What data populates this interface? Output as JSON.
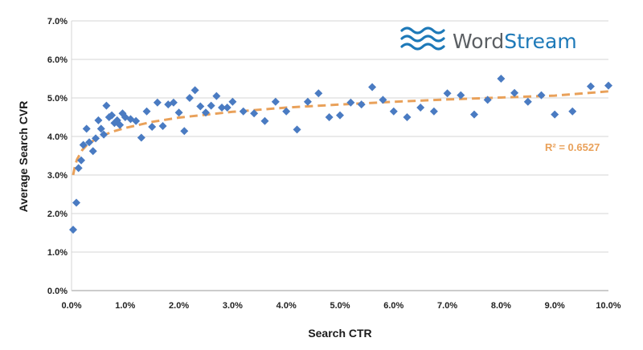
{
  "brand": {
    "name_part1": "Word",
    "name_part2": "Stream",
    "color_gray": "#5b5f63",
    "color_blue": "#1d79b8"
  },
  "chart_data": {
    "type": "scatter",
    "xlabel": "Search CTR",
    "ylabel": "Average Search CVR",
    "xlim": [
      0,
      10
    ],
    "ylim": [
      0,
      7
    ],
    "x_ticks": [
      "0.0%",
      "1.0%",
      "2.0%",
      "3.0%",
      "4.0%",
      "5.0%",
      "6.0%",
      "7.0%",
      "8.0%",
      "9.0%",
      "10.0%"
    ],
    "y_ticks": [
      "0.0%",
      "1.0%",
      "2.0%",
      "3.0%",
      "4.0%",
      "5.0%",
      "6.0%",
      "7.0%"
    ],
    "grid": "horizontal",
    "marker_color": "#4a7bc2",
    "trendline": {
      "type": "logarithmic",
      "label": "R² = 0.6527",
      "color": "#e9a15a",
      "points": [
        [
          0.03,
          3.0
        ],
        [
          0.06,
          3.2
        ],
        [
          0.1,
          3.4
        ],
        [
          0.2,
          3.65
        ],
        [
          0.3,
          3.8
        ],
        [
          0.5,
          3.97
        ],
        [
          0.75,
          4.12
        ],
        [
          1.0,
          4.22
        ],
        [
          1.5,
          4.38
        ],
        [
          2.0,
          4.49
        ],
        [
          3.0,
          4.64
        ],
        [
          4.0,
          4.75
        ],
        [
          5.0,
          4.83
        ],
        [
          6.0,
          4.9
        ],
        [
          7.0,
          4.96
        ],
        [
          8.0,
          5.01
        ],
        [
          9.0,
          5.06
        ],
        [
          10.0,
          5.17
        ]
      ]
    },
    "series": [
      {
        "points": [
          [
            0.03,
            1.58
          ],
          [
            0.09,
            2.28
          ],
          [
            0.13,
            3.18
          ],
          [
            0.18,
            3.38
          ],
          [
            0.22,
            3.78
          ],
          [
            0.28,
            4.2
          ],
          [
            0.33,
            3.85
          ],
          [
            0.4,
            3.62
          ],
          [
            0.45,
            3.95
          ],
          [
            0.5,
            4.42
          ],
          [
            0.55,
            4.2
          ],
          [
            0.6,
            4.05
          ],
          [
            0.65,
            4.8
          ],
          [
            0.7,
            4.5
          ],
          [
            0.75,
            4.55
          ],
          [
            0.8,
            4.35
          ],
          [
            0.85,
            4.42
          ],
          [
            0.9,
            4.3
          ],
          [
            0.95,
            4.6
          ],
          [
            1.0,
            4.5
          ],
          [
            1.1,
            4.45
          ],
          [
            1.2,
            4.4
          ],
          [
            1.3,
            3.97
          ],
          [
            1.4,
            4.65
          ],
          [
            1.5,
            4.25
          ],
          [
            1.6,
            4.88
          ],
          [
            1.7,
            4.27
          ],
          [
            1.8,
            4.83
          ],
          [
            1.9,
            4.88
          ],
          [
            2.0,
            4.62
          ],
          [
            2.1,
            4.14
          ],
          [
            2.2,
            5.0
          ],
          [
            2.3,
            5.2
          ],
          [
            2.4,
            4.78
          ],
          [
            2.5,
            4.62
          ],
          [
            2.6,
            4.8
          ],
          [
            2.7,
            5.05
          ],
          [
            2.8,
            4.75
          ],
          [
            2.9,
            4.75
          ],
          [
            3.0,
            4.9
          ],
          [
            3.2,
            4.65
          ],
          [
            3.4,
            4.6
          ],
          [
            3.6,
            4.4
          ],
          [
            3.8,
            4.9
          ],
          [
            4.0,
            4.65
          ],
          [
            4.2,
            4.18
          ],
          [
            4.4,
            4.9
          ],
          [
            4.6,
            5.12
          ],
          [
            4.8,
            4.5
          ],
          [
            5.0,
            4.55
          ],
          [
            5.2,
            4.88
          ],
          [
            5.4,
            4.83
          ],
          [
            5.6,
            5.28
          ],
          [
            5.8,
            4.95
          ],
          [
            6.0,
            4.65
          ],
          [
            6.25,
            4.5
          ],
          [
            6.5,
            4.75
          ],
          [
            6.75,
            4.65
          ],
          [
            7.0,
            5.12
          ],
          [
            7.25,
            5.07
          ],
          [
            7.5,
            4.57
          ],
          [
            7.75,
            4.95
          ],
          [
            8.0,
            5.5
          ],
          [
            8.25,
            5.13
          ],
          [
            8.5,
            4.9
          ],
          [
            8.75,
            5.07
          ],
          [
            9.0,
            4.57
          ],
          [
            9.33,
            4.65
          ],
          [
            9.67,
            5.3
          ],
          [
            10.0,
            5.32
          ]
        ]
      }
    ]
  }
}
